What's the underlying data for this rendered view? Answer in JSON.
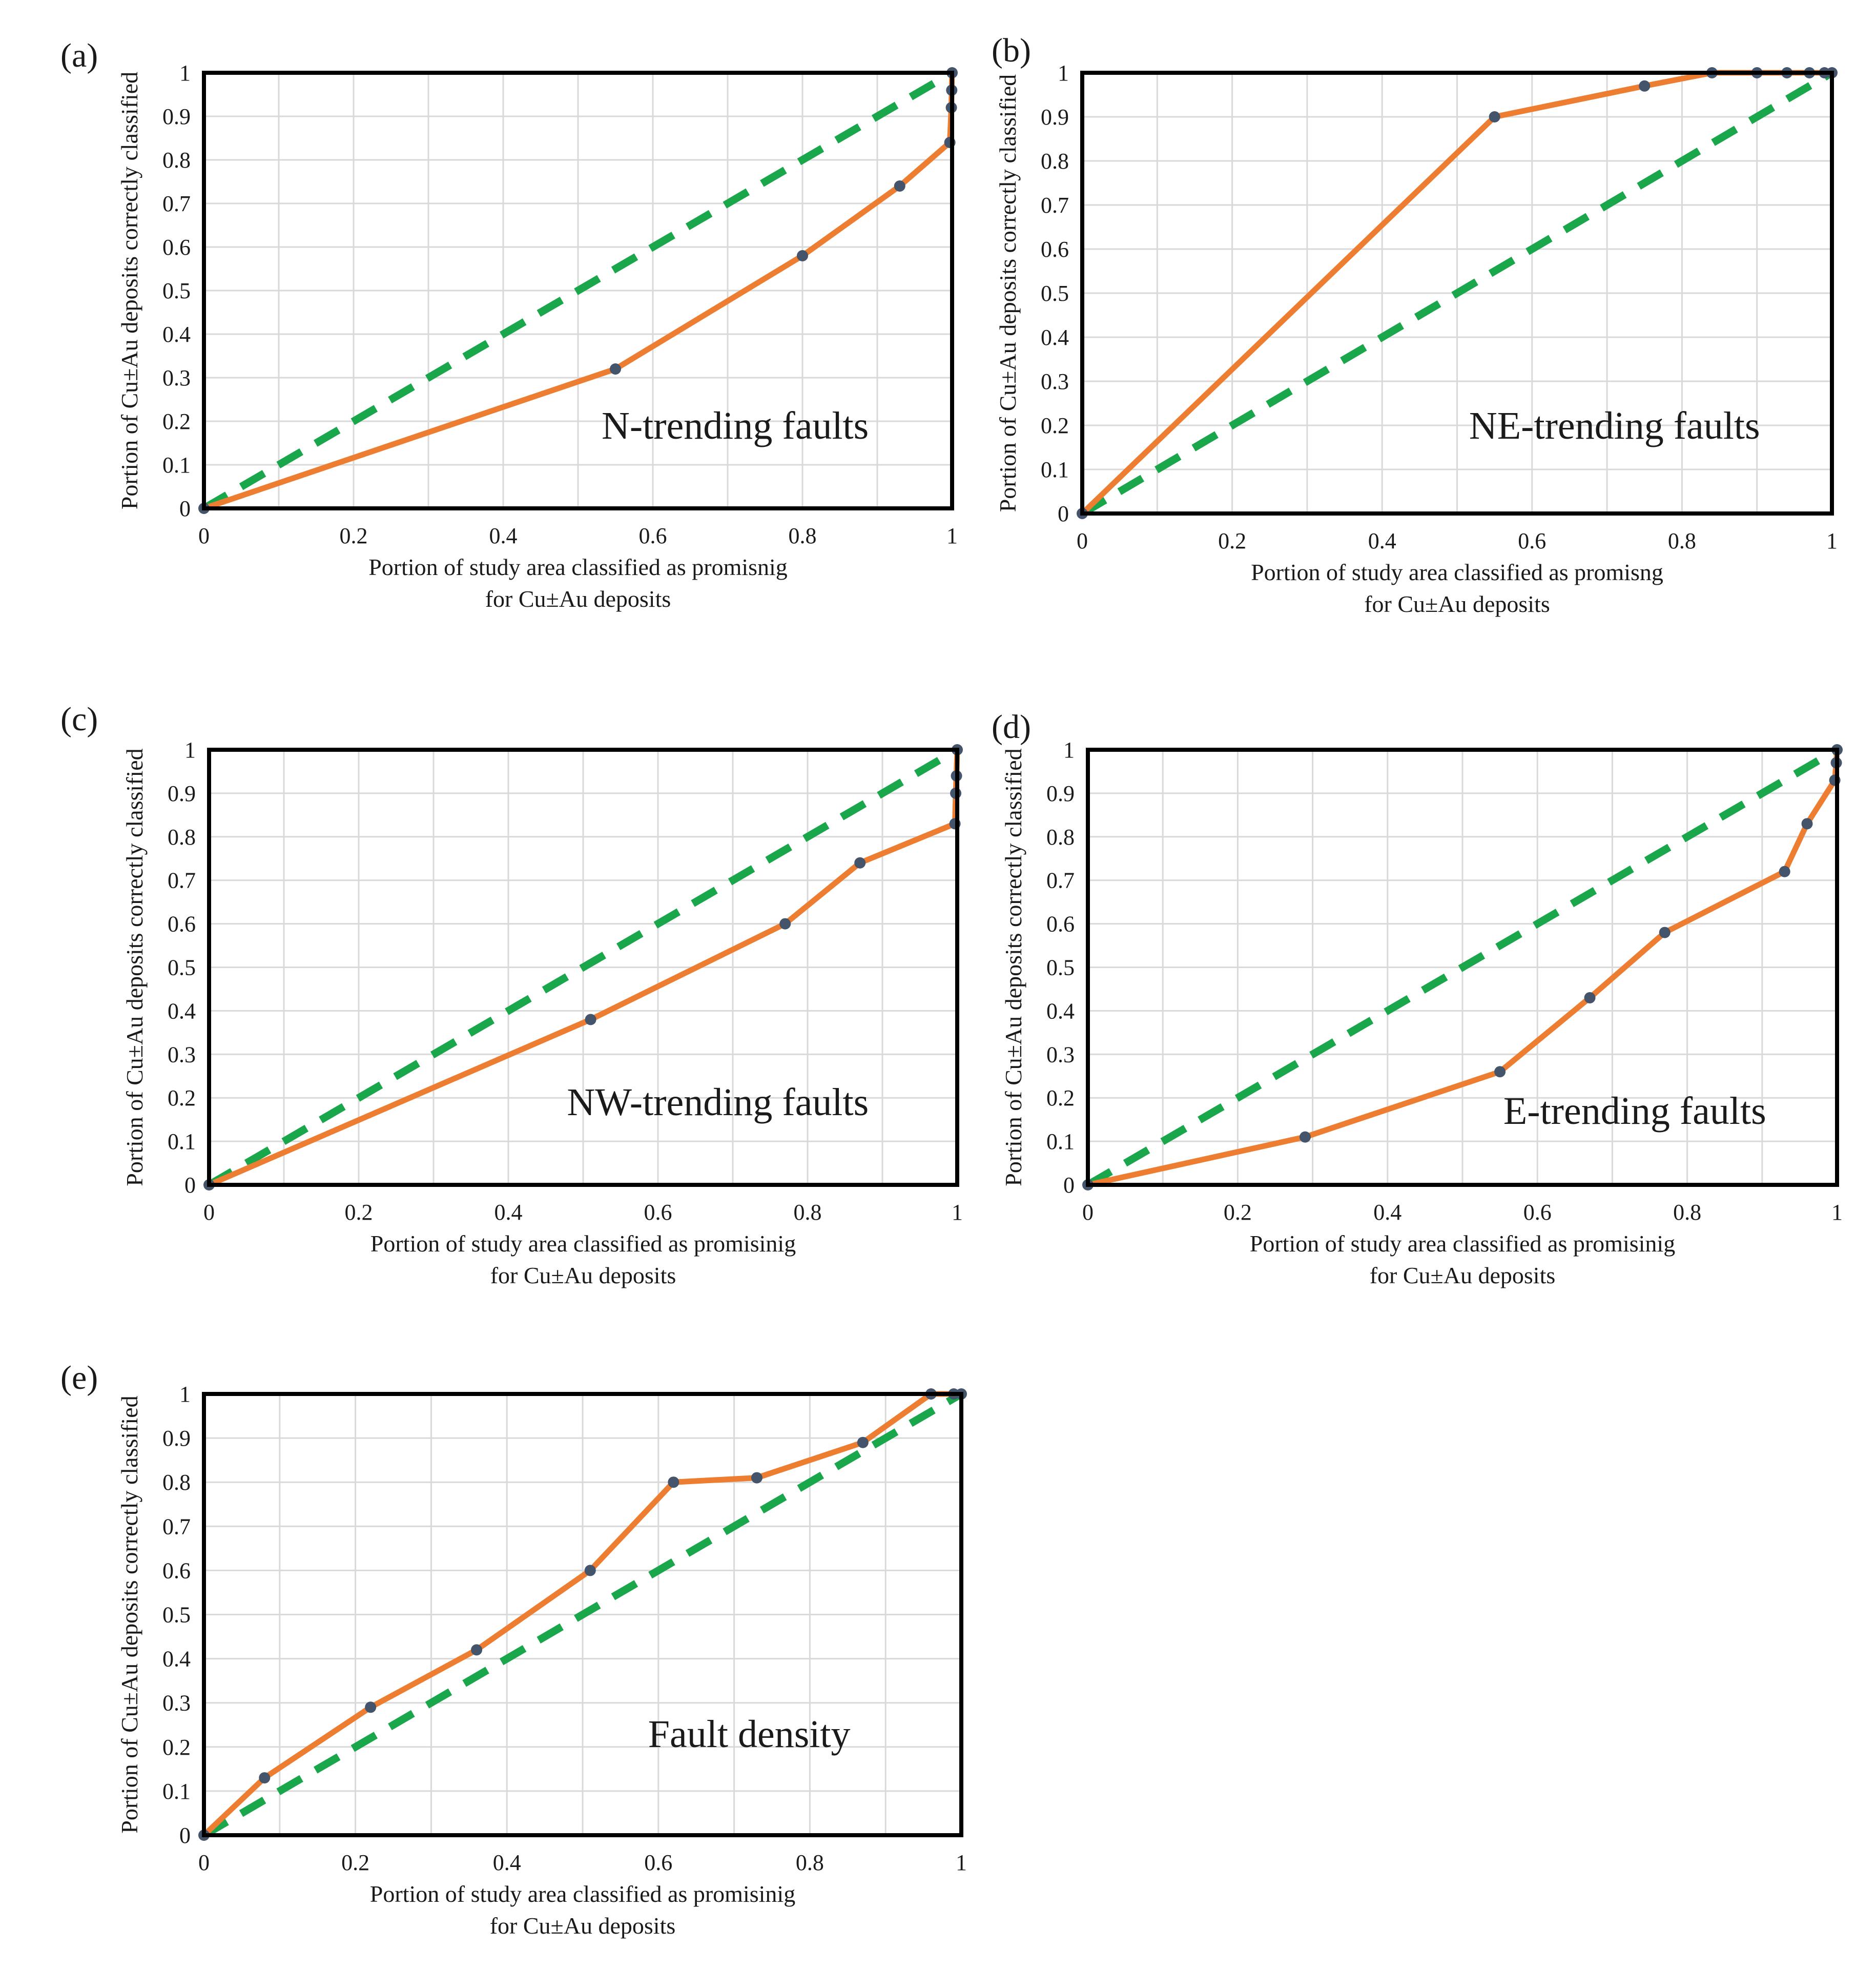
{
  "colors": {
    "data_line": "#ED7D31",
    "data_marker": "#44546A",
    "reference_line": "#1AA64A"
  },
  "chart_data": [
    {
      "id": "a",
      "panel_label": "(a)",
      "type": "line",
      "annotation": "N-trending faults",
      "xlabel": [
        "Portion of study area classified as promisnig",
        "for Cu±Au deposits"
      ],
      "ylabel": "Portion of Cu±Au deposits correctly classified",
      "xlim": [
        0,
        1
      ],
      "ylim": [
        0,
        1
      ],
      "xticks": [
        "0",
        "0.2",
        "0.4",
        "0.6",
        "0.8",
        "1"
      ],
      "yticks": [
        "0",
        "0.1",
        "0.2",
        "0.3",
        "0.4",
        "0.5",
        "0.6",
        "0.7",
        "0.8",
        "0.9",
        "1"
      ],
      "grid": true,
      "reference": "diagonal",
      "x": [
        0,
        0.55,
        0.8,
        0.93,
        0.997,
        0.999,
        0.9995,
        1.0
      ],
      "y": [
        0,
        0.32,
        0.58,
        0.74,
        0.84,
        0.92,
        0.96,
        1.0
      ]
    },
    {
      "id": "b",
      "panel_label": "(b)",
      "type": "line",
      "annotation": "NE-trending faults",
      "xlabel": [
        "Portion of study area classified as promisng",
        "for Cu±Au deposits"
      ],
      "ylabel": "Portion of Cu±Au deposits correctly classified",
      "xlim": [
        0,
        1
      ],
      "ylim": [
        0,
        1
      ],
      "xticks": [
        "0",
        "0.2",
        "0.4",
        "0.6",
        "0.8",
        "1"
      ],
      "yticks": [
        "0",
        "0.1",
        "0.2",
        "0.3",
        "0.4",
        "0.5",
        "0.6",
        "0.7",
        "0.8",
        "0.9",
        "1"
      ],
      "grid": true,
      "reference": "diagonal",
      "x": [
        0,
        0.55,
        0.75,
        0.84,
        0.9,
        0.94,
        0.97,
        0.99,
        1.0
      ],
      "y": [
        0,
        0.9,
        0.97,
        1.0,
        1.0,
        1.0,
        1.0,
        1.0,
        1.0
      ]
    },
    {
      "id": "c",
      "panel_label": "(c)",
      "type": "line",
      "annotation": "NW-trending faults",
      "xlabel": [
        "Portion of study area classified as promisinig",
        "for Cu±Au deposits"
      ],
      "ylabel": "Portion of Cu±Au deposits correctly classified",
      "xlim": [
        0,
        1
      ],
      "ylim": [
        0,
        1
      ],
      "xticks": [
        "0",
        "0.2",
        "0.4",
        "0.6",
        "0.8",
        "1"
      ],
      "yticks": [
        "0",
        "0.1",
        "0.2",
        "0.3",
        "0.4",
        "0.5",
        "0.6",
        "0.7",
        "0.8",
        "0.9",
        "1"
      ],
      "grid": true,
      "reference": "diagonal",
      "x": [
        0,
        0.51,
        0.77,
        0.87,
        0.997,
        0.998,
        0.999,
        1.0
      ],
      "y": [
        0,
        0.38,
        0.6,
        0.74,
        0.83,
        0.9,
        0.94,
        1.0
      ]
    },
    {
      "id": "d",
      "panel_label": "(d)",
      "type": "line",
      "annotation": "E-trending faults",
      "xlabel": [
        "Portion of study area classified as promisinig",
        "for Cu±Au deposits"
      ],
      "ylabel": "Portion of Cu±Au deposits correctly classified",
      "xlim": [
        0,
        1
      ],
      "ylim": [
        0,
        1
      ],
      "xticks": [
        "0",
        "0.2",
        "0.4",
        "0.6",
        "0.8",
        "1"
      ],
      "yticks": [
        "0",
        "0.1",
        "0.2",
        "0.3",
        "0.4",
        "0.5",
        "0.6",
        "0.7",
        "0.8",
        "0.9",
        "1"
      ],
      "grid": true,
      "reference": "diagonal",
      "x": [
        0,
        0.29,
        0.55,
        0.67,
        0.77,
        0.93,
        0.96,
        0.997,
        0.999,
        1.0
      ],
      "y": [
        0,
        0.11,
        0.26,
        0.43,
        0.58,
        0.72,
        0.83,
        0.93,
        0.97,
        1.0
      ]
    },
    {
      "id": "e",
      "panel_label": "(e)",
      "type": "line",
      "annotation": "Fault density",
      "xlabel": [
        "Portion of study area classified as promisinig",
        "for Cu±Au deposits"
      ],
      "ylabel": "Portion of Cu±Au deposits correctly classified",
      "xlim": [
        0,
        1
      ],
      "ylim": [
        0,
        1
      ],
      "xticks": [
        "0",
        "0.2",
        "0.4",
        "0.6",
        "0.8",
        "1"
      ],
      "yticks": [
        "0",
        "0.1",
        "0.2",
        "0.3",
        "0.4",
        "0.5",
        "0.6",
        "0.7",
        "0.8",
        "0.9",
        "1"
      ],
      "grid": true,
      "reference": "diagonal",
      "x": [
        0,
        0.08,
        0.22,
        0.36,
        0.51,
        0.62,
        0.73,
        0.87,
        0.96,
        0.99,
        1.0
      ],
      "y": [
        0,
        0.13,
        0.29,
        0.42,
        0.6,
        0.8,
        0.81,
        0.89,
        1.0,
        1.0,
        1.0
      ]
    }
  ]
}
